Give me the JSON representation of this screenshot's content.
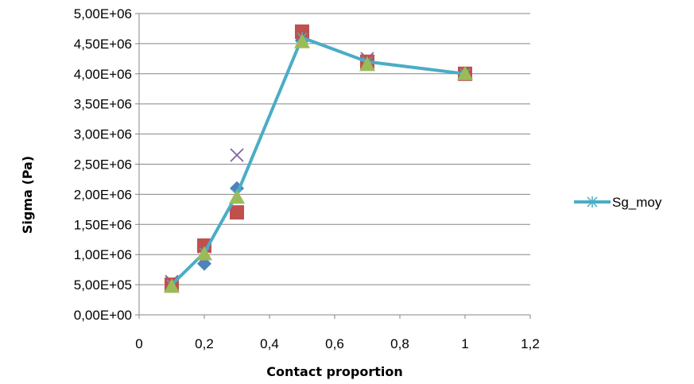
{
  "chart_data": {
    "type": "scatter",
    "title": "",
    "xlabel": "Contact proportion",
    "ylabel": "Sigma (Pa)",
    "xlim": [
      0,
      1.2
    ],
    "ylim": [
      0,
      5000000
    ],
    "x_ticks": [
      "0",
      "0,2",
      "0,4",
      "0,6",
      "0,8",
      "1",
      "1,2"
    ],
    "y_ticks": [
      "0,00E+00",
      "5,00E+05",
      "1,00E+06",
      "1,50E+06",
      "2,00E+06",
      "2,50E+06",
      "3,00E+06",
      "3,50E+06",
      "4,00E+06",
      "4,50E+06",
      "5,00E+06"
    ],
    "grid": {
      "horizontal": true,
      "vertical": false
    },
    "legend_position": "right",
    "series": [
      {
        "name": "Sg_moy",
        "style": "line-star",
        "color": "#4bacc6",
        "x": [
          0.1,
          0.2,
          0.3,
          0.5,
          0.7,
          1.0
        ],
        "y": [
          500000,
          1030000,
          2000000,
          4600000,
          4200000,
          4000000
        ]
      },
      {
        "style": "diamond",
        "color": "#4f81bd",
        "x": [
          0.1,
          0.2,
          0.3,
          0.5,
          0.7,
          1.0
        ],
        "y": [
          500000,
          850000,
          2100000,
          4550000,
          4200000,
          4000000
        ]
      },
      {
        "style": "square",
        "color": "#c0504d",
        "x": [
          0.1,
          0.2,
          0.3,
          0.5,
          0.7,
          1.0
        ],
        "y": [
          500000,
          1150000,
          1700000,
          4700000,
          4200000,
          4000000
        ]
      },
      {
        "style": "triangle",
        "color": "#9bbb59",
        "x": [
          0.1,
          0.2,
          0.3,
          0.5,
          0.7,
          1.0
        ],
        "y": [
          470000,
          1010000,
          1950000,
          4530000,
          4150000,
          4000000
        ]
      },
      {
        "style": "x-mark",
        "color": "#8064a2",
        "x": [
          0.1,
          0.2,
          0.3,
          0.5,
          0.7,
          1.0
        ],
        "y": [
          550000,
          1130000,
          2650000,
          4680000,
          4250000,
          4000000
        ]
      }
    ]
  }
}
